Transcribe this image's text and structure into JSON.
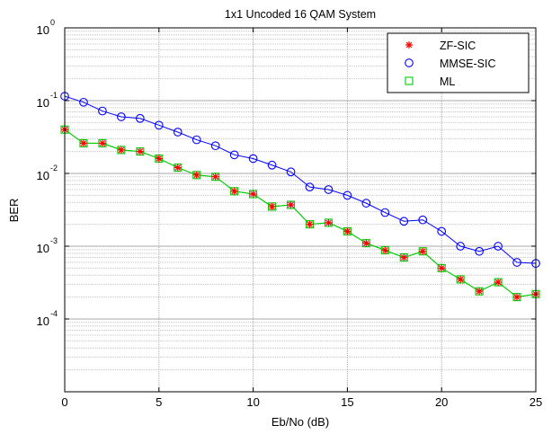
{
  "chart_data": {
    "type": "line",
    "title": "1x1 Uncoded 16 QAM System",
    "xlabel": "Eb/No (dB)",
    "ylabel": "BER",
    "xlim": [
      0,
      25
    ],
    "ylim": [
      1e-05,
      1
    ],
    "yscale": "log",
    "grid": true,
    "legend_position": "top-right",
    "x_ticks": [
      "0",
      "5",
      "10",
      "15",
      "20",
      "25"
    ],
    "y_ticks": [
      {
        "base": "10",
        "exp": "0"
      },
      {
        "base": "10",
        "exp": "-1"
      },
      {
        "base": "10",
        "exp": "-2"
      },
      {
        "base": "10",
        "exp": "-3"
      },
      {
        "base": "10",
        "exp": "-4"
      }
    ],
    "x": [
      0,
      1,
      2,
      3,
      4,
      5,
      6,
      7,
      8,
      9,
      10,
      11,
      12,
      13,
      14,
      15,
      16,
      17,
      18,
      19,
      20,
      21,
      22,
      23,
      24,
      25
    ],
    "series": [
      {
        "name": "ZF-SIC",
        "marker": "asterisk",
        "color": "#ff0000",
        "line_color": "#00cc00",
        "values": [
          0.04,
          0.026,
          0.026,
          0.021,
          0.02,
          0.016,
          0.012,
          0.0095,
          0.009,
          0.0057,
          0.0052,
          0.0035,
          0.0037,
          0.002,
          0.0021,
          0.0016,
          0.0011,
          0.00088,
          0.0007,
          0.00085,
          0.0005,
          0.00035,
          0.00024,
          0.00032,
          0.0002,
          0.00022
        ]
      },
      {
        "name": "MMSE-SIC",
        "marker": "circle",
        "color": "#0000ff",
        "line_color": "#0000ff",
        "values": [
          0.115,
          0.095,
          0.072,
          0.06,
          0.057,
          0.046,
          0.037,
          0.029,
          0.024,
          0.018,
          0.016,
          0.013,
          0.0105,
          0.0065,
          0.006,
          0.005,
          0.0039,
          0.0029,
          0.0022,
          0.0023,
          0.0016,
          0.001,
          0.00085,
          0.001,
          0.0006,
          0.00058
        ]
      },
      {
        "name": "ML",
        "marker": "square",
        "color": "#00cc00",
        "line_color": "#00cc00",
        "values": [
          0.04,
          0.026,
          0.026,
          0.021,
          0.02,
          0.016,
          0.012,
          0.0095,
          0.009,
          0.0057,
          0.0052,
          0.0035,
          0.0037,
          0.002,
          0.0021,
          0.0016,
          0.0011,
          0.00088,
          0.0007,
          0.00085,
          0.0005,
          0.00035,
          0.00024,
          0.00032,
          0.0002,
          0.00022
        ]
      }
    ]
  }
}
